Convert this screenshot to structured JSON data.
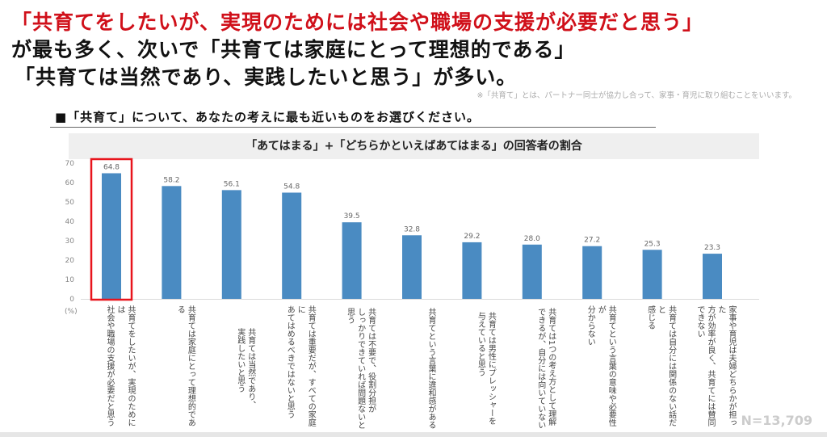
{
  "headline": {
    "line1": "「共育てをしたいが、実現のためには社会や職場の支援が必要だと思う」",
    "line2": "が最も多く、次いで「共育ては家庭にとって理想的である」",
    "line3": "「共育ては当然であり、実践したいと思う」が多い。"
  },
  "note": "※「共育て」とは、パートナー同士が協力し合って、家事・育児に取り組むことをいいます。",
  "question": "■「共育て」について、あなたの考えに最も近いものをお選びください。",
  "sample_size": "N=13,709",
  "chart_data": {
    "type": "bar",
    "title": "「あてはまる」+「どちらかといえばあてはまる」の回答者の割合",
    "ylabel": "(%)",
    "ylim": [
      0,
      70
    ],
    "yticks": [
      "0",
      "10",
      "20",
      "30",
      "40",
      "50",
      "60",
      "70"
    ],
    "grid": false,
    "bar_color": "#4a8bc2",
    "highlight_color": "#e8141c",
    "highlight_index": 0,
    "categories": [
      "共育てをしたいが、実現のためには\n社会や職場の支援が必要だと思う",
      "共育ては家庭にとって理想的である",
      "共育ては当然であり、\n実践したいと思う",
      "共育ては重要だが、すべての家庭に\nあてはめるべきではないと思う",
      "共育ては不要で、役割分担が\nしっかりできていれば問題ないと\n思う",
      "共育てという言葉に違和感がある",
      "共育ては男性にプレッシャーを\n与えていると思う",
      "共育ては1つの考え方として理解\nできるが、自分には向いていない",
      "共育てという言葉の意味や必要性が\n分からない",
      "共育ては自分には関係のない話だと\n感じる",
      "家事や育児は夫婦どちらかが担った\n方が効率が良く、共育てには賛同\nできない"
    ],
    "values": [
      64.8,
      58.2,
      56.1,
      54.8,
      39.5,
      32.8,
      29.2,
      28.0,
      27.2,
      25.3,
      23.3
    ],
    "value_labels": [
      "64.8",
      "58.2",
      "56.1",
      "54.8",
      "39.5",
      "32.8",
      "29.2",
      "28.0",
      "27.2",
      "25.3",
      "23.3"
    ]
  }
}
